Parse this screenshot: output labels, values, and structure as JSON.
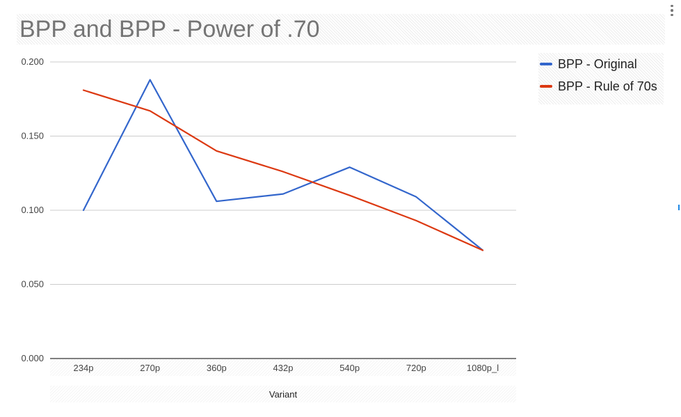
{
  "title": "BPP and BPP - Power of .70",
  "chart_data": {
    "type": "line",
    "title": "BPP and BPP - Power of .70",
    "xlabel": "Variant",
    "ylabel": "",
    "categories": [
      "234p",
      "270p",
      "360p",
      "432p",
      "540p",
      "720p",
      "1080p_l"
    ],
    "ylim": [
      0,
      0.2
    ],
    "yticks": [
      "0.000",
      "0.050",
      "0.100",
      "0.150",
      "0.200"
    ],
    "grid": true,
    "legend_position": "right",
    "series": [
      {
        "name": "BPP - Original",
        "color": "#3366cc",
        "values": [
          0.1,
          0.188,
          0.106,
          0.111,
          0.129,
          0.109,
          0.073
        ]
      },
      {
        "name": "BPP - Rule of 70s",
        "color": "#dc3912",
        "values": [
          0.181,
          0.167,
          0.14,
          0.126,
          0.11,
          0.093,
          0.073
        ]
      }
    ]
  }
}
